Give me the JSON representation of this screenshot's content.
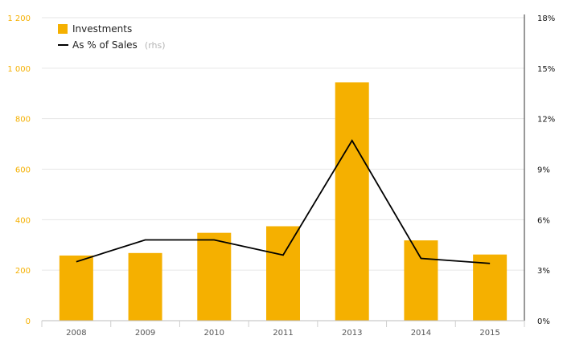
{
  "chart_data": {
    "type": "bar",
    "categories": [
      "2008",
      "2009",
      "2010",
      "2011",
      "2013",
      "2014",
      "2015"
    ],
    "series": [
      {
        "name": "Investments",
        "type": "bar",
        "axis": "left",
        "color": "#f5b000",
        "values": [
          258,
          268,
          348,
          374,
          944,
          318,
          262
        ]
      },
      {
        "name": "As % of Sales",
        "name_suffix": "(rhs)",
        "type": "line",
        "axis": "right",
        "color": "#000000",
        "values": [
          3.5,
          4.8,
          4.8,
          3.9,
          10.7,
          3.7,
          3.4
        ]
      }
    ],
    "ylim": [
      0,
      1200
    ],
    "yticks": [
      0,
      200,
      400,
      600,
      800,
      1000,
      1200
    ],
    "ytick_labels": [
      "0",
      "200",
      "400",
      "600",
      "800",
      "1 000",
      "1 200"
    ],
    "y2lim": [
      0,
      18
    ],
    "y2ticks": [
      0,
      3,
      6,
      9,
      12,
      15,
      18
    ],
    "y2tick_labels": [
      "0%",
      "3%",
      "6%",
      "9%",
      "12%",
      "15%",
      "18%"
    ],
    "grid": true,
    "legend_position": "top-left",
    "title": "",
    "xlabel": "",
    "ylabel": ""
  },
  "colors": {
    "bar": "#f5b000",
    "line": "#000000",
    "left_ticks": "#f5b000",
    "grid": "#e6e6e6"
  }
}
